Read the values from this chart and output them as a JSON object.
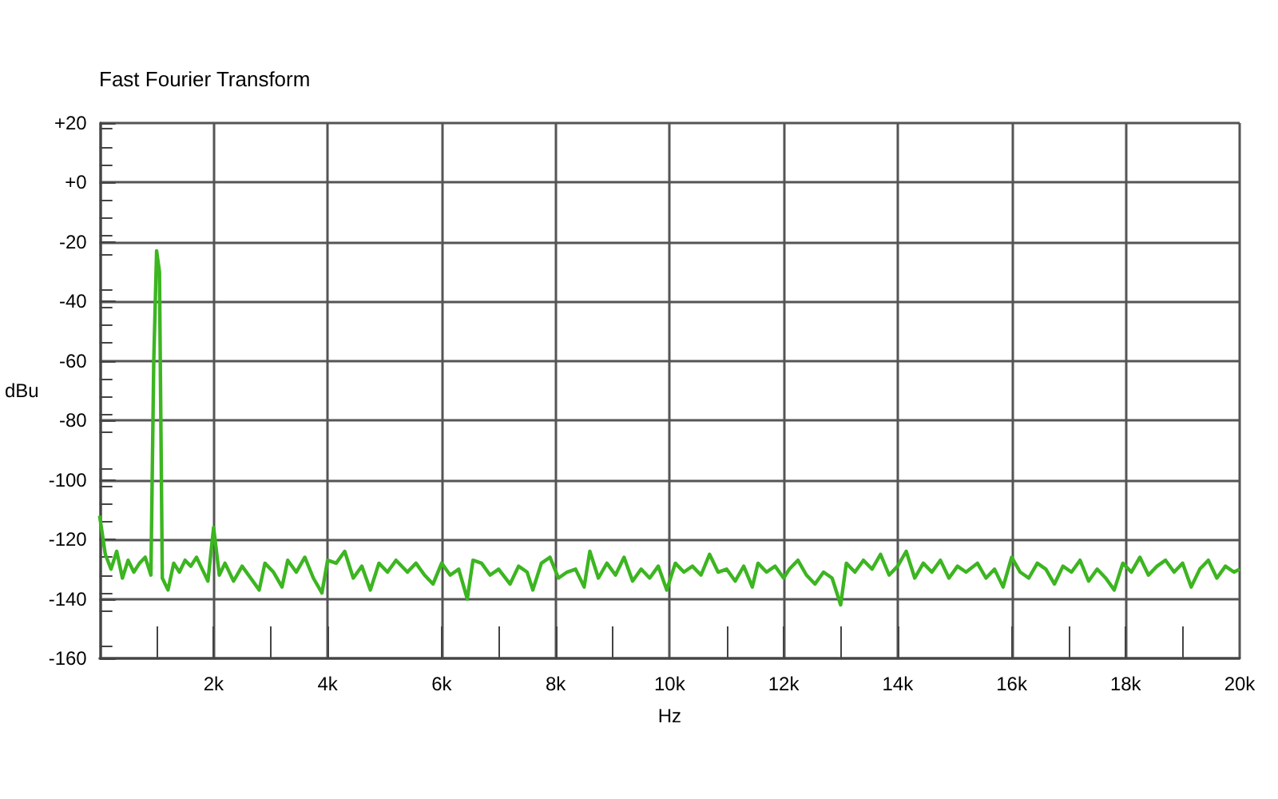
{
  "chart_data": {
    "type": "line",
    "title": "Fast Fourier Transform",
    "xlabel": "Hz",
    "ylabel": "dBu",
    "x": [
      0,
      100,
      200,
      300,
      400,
      500,
      600,
      700,
      800,
      900,
      950,
      1000,
      1050,
      1100,
      1200,
      1300,
      1400,
      1500,
      1600,
      1700,
      1800,
      1900,
      2000,
      2100,
      2200,
      2350,
      2500,
      2650,
      2800,
      2900,
      3050,
      3200,
      3300,
      3450,
      3600,
      3750,
      3900,
      4000,
      4150,
      4300,
      4450,
      4600,
      4750,
      4900,
      5050,
      5200,
      5400,
      5550,
      5700,
      5850,
      6000,
      6150,
      6300,
      6450,
      6550,
      6700,
      6850,
      7000,
      7200,
      7350,
      7500,
      7600,
      7750,
      7900,
      8050,
      8200,
      8350,
      8500,
      8600,
      8750,
      8900,
      9050,
      9200,
      9350,
      9500,
      9650,
      9800,
      9950,
      10100,
      10250,
      10400,
      10550,
      10700,
      10850,
      11000,
      11150,
      11300,
      11450,
      11550,
      11700,
      11850,
      12000,
      12100,
      12250,
      12400,
      12550,
      12700,
      12850,
      13000,
      13100,
      13250,
      13400,
      13550,
      13700,
      13850,
      14000,
      14150,
      14300,
      14450,
      14600,
      14750,
      14900,
      15050,
      15200,
      15400,
      15550,
      15700,
      15850,
      16000,
      16150,
      16300,
      16450,
      16600,
      16750,
      16900,
      17050,
      17200,
      17350,
      17500,
      17650,
      17800,
      17950,
      18100,
      18250,
      18400,
      18550,
      18700,
      18850,
      19000,
      19150,
      19300,
      19450,
      19600,
      19750,
      19900,
      20000
    ],
    "series": [
      {
        "color": "#3cb521",
        "values": [
          -112,
          -125,
          -130,
          -124,
          -133,
          -127,
          -131,
          -128,
          -126,
          -132,
          -60,
          -23,
          -30,
          -133,
          -137,
          -128,
          -131,
          -127,
          -129,
          -126,
          -130,
          -134,
          -116,
          -132,
          -128,
          -134,
          -129,
          -133,
          -137,
          -128,
          -131,
          -136,
          -127,
          -131,
          -126,
          -133,
          -138,
          -127,
          -128,
          -124,
          -133,
          -129,
          -137,
          -128,
          -131,
          -127,
          -131,
          -128,
          -132,
          -135,
          -128,
          -132,
          -130,
          -140,
          -127,
          -128,
          -132,
          -130,
          -135,
          -129,
          -131,
          -137,
          -128,
          -126,
          -133,
          -131,
          -130,
          -136,
          -124,
          -133,
          -128,
          -132,
          -126,
          -134,
          -130,
          -133,
          -129,
          -137,
          -128,
          -131,
          -129,
          -132,
          -125,
          -131,
          -130,
          -134,
          -129,
          -136,
          -128,
          -131,
          -129,
          -133,
          -130,
          -127,
          -132,
          -135,
          -131,
          -133,
          -142,
          -128,
          -131,
          -127,
          -130,
          -125,
          -132,
          -129,
          -124,
          -133,
          -128,
          -131,
          -127,
          -133,
          -129,
          -131,
          -128,
          -133,
          -130,
          -136,
          -126,
          -131,
          -133,
          -128,
          -130,
          -135,
          -129,
          -131,
          -127,
          -134,
          -130,
          -133,
          -137,
          -128,
          -131,
          -126,
          -132,
          -129,
          -127,
          -131,
          -128,
          -136,
          -130,
          -127,
          -133,
          -129,
          -131,
          -130
        ]
      }
    ],
    "xlim": [
      0,
      20000
    ],
    "xticks": [
      {
        "value": 0,
        "label": null
      },
      {
        "value": 2000,
        "label": "2k"
      },
      {
        "value": 4000,
        "label": "4k"
      },
      {
        "value": 6000,
        "label": "6k"
      },
      {
        "value": 8000,
        "label": "8k"
      },
      {
        "value": 10000,
        "label": "10k"
      },
      {
        "value": 12000,
        "label": "12k"
      },
      {
        "value": 14000,
        "label": "14k"
      },
      {
        "value": 16000,
        "label": "16k"
      },
      {
        "value": 18000,
        "label": "18k"
      },
      {
        "value": 20000,
        "label": "20k"
      }
    ],
    "ylim": [
      -160,
      20
    ],
    "yticks": [
      -160,
      -140,
      -120,
      -100,
      -80,
      -60,
      -40,
      -20,
      {
        "value": 0,
        "label": "+0"
      },
      {
        "value": 20,
        "label": "+20"
      }
    ],
    "grid": true,
    "marker": "none",
    "line_style": "solid"
  }
}
